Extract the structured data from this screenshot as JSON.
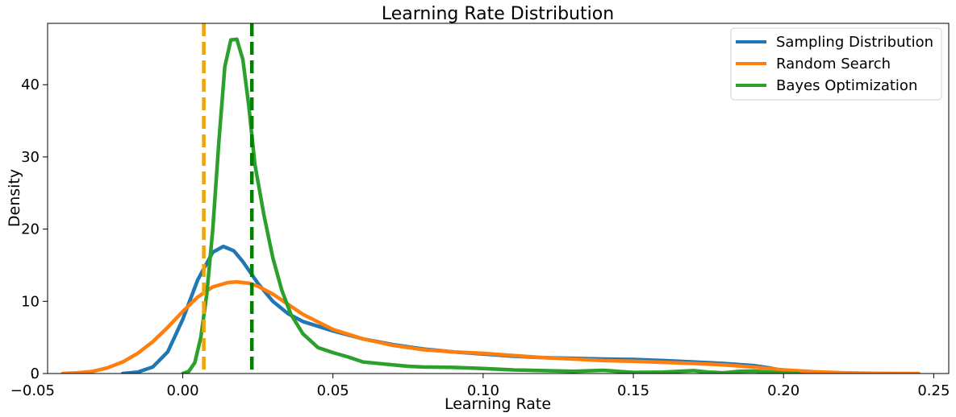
{
  "chart_data": {
    "type": "line",
    "title": "Learning Rate Distribution",
    "xlabel": "Learning Rate",
    "ylabel": "Density",
    "xlim": [
      -0.045,
      0.255
    ],
    "ylim": [
      0,
      48.5
    ],
    "x_ticks": [
      -0.05,
      0.0,
      0.05,
      0.1,
      0.15,
      0.2,
      0.25
    ],
    "x_tick_labels": [
      "−0.05",
      "0.00",
      "0.05",
      "0.10",
      "0.15",
      "0.20",
      "0.25"
    ],
    "y_ticks": [
      0,
      10,
      20,
      30,
      40
    ],
    "y_tick_labels": [
      "0",
      "10",
      "20",
      "30",
      "40"
    ],
    "grid": false,
    "legend_position": "top-right",
    "series": [
      {
        "name": "Sampling Distribution",
        "color": "#1f77b4",
        "points": [
          [
            -0.02,
            0.0
          ],
          [
            -0.015,
            0.2
          ],
          [
            -0.01,
            0.9
          ],
          [
            -0.005,
            3.0
          ],
          [
            0.0,
            7.5
          ],
          [
            0.005,
            13.0
          ],
          [
            0.01,
            16.8
          ],
          [
            0.0135,
            17.6
          ],
          [
            0.017,
            17.0
          ],
          [
            0.02,
            15.5
          ],
          [
            0.025,
            12.5
          ],
          [
            0.03,
            10.0
          ],
          [
            0.035,
            8.3
          ],
          [
            0.04,
            7.2
          ],
          [
            0.05,
            5.9
          ],
          [
            0.06,
            4.8
          ],
          [
            0.07,
            4.0
          ],
          [
            0.08,
            3.4
          ],
          [
            0.09,
            3.0
          ],
          [
            0.1,
            2.7
          ],
          [
            0.11,
            2.4
          ],
          [
            0.12,
            2.2
          ],
          [
            0.13,
            2.1
          ],
          [
            0.14,
            2.0
          ],
          [
            0.15,
            1.95
          ],
          [
            0.16,
            1.8
          ],
          [
            0.17,
            1.6
          ],
          [
            0.18,
            1.4
          ],
          [
            0.19,
            1.1
          ],
          [
            0.195,
            0.8
          ],
          [
            0.2,
            0.4
          ],
          [
            0.205,
            0.15
          ],
          [
            0.21,
            0.0
          ]
        ]
      },
      {
        "name": "Random Search",
        "color": "#ff7f0e",
        "points": [
          [
            -0.04,
            0.0
          ],
          [
            -0.035,
            0.1
          ],
          [
            -0.03,
            0.3
          ],
          [
            -0.025,
            0.8
          ],
          [
            -0.02,
            1.6
          ],
          [
            -0.015,
            2.8
          ],
          [
            -0.01,
            4.4
          ],
          [
            -0.005,
            6.4
          ],
          [
            0.0,
            8.6
          ],
          [
            0.005,
            10.6
          ],
          [
            0.01,
            12.0
          ],
          [
            0.015,
            12.6
          ],
          [
            0.018,
            12.7
          ],
          [
            0.022,
            12.5
          ],
          [
            0.025,
            12.1
          ],
          [
            0.03,
            11.0
          ],
          [
            0.035,
            9.6
          ],
          [
            0.04,
            8.2
          ],
          [
            0.05,
            6.1
          ],
          [
            0.06,
            4.8
          ],
          [
            0.07,
            3.9
          ],
          [
            0.08,
            3.3
          ],
          [
            0.09,
            3.0
          ],
          [
            0.1,
            2.8
          ],
          [
            0.11,
            2.5
          ],
          [
            0.12,
            2.2
          ],
          [
            0.13,
            2.0
          ],
          [
            0.14,
            1.8
          ],
          [
            0.15,
            1.7
          ],
          [
            0.16,
            1.55
          ],
          [
            0.17,
            1.4
          ],
          [
            0.18,
            1.2
          ],
          [
            0.19,
            0.9
          ],
          [
            0.2,
            0.5
          ],
          [
            0.21,
            0.25
          ],
          [
            0.22,
            0.1
          ],
          [
            0.23,
            0.03
          ],
          [
            0.245,
            0.0
          ]
        ]
      },
      {
        "name": "Bayes Optimization",
        "color": "#2ca02c",
        "points": [
          [
            0.0,
            0.0
          ],
          [
            0.002,
            0.3
          ],
          [
            0.004,
            1.5
          ],
          [
            0.006,
            5.0
          ],
          [
            0.008,
            11.0
          ],
          [
            0.01,
            20.0
          ],
          [
            0.012,
            32.0
          ],
          [
            0.014,
            42.5
          ],
          [
            0.016,
            46.2
          ],
          [
            0.018,
            46.3
          ],
          [
            0.02,
            43.5
          ],
          [
            0.022,
            37.0
          ],
          [
            0.024,
            29.0
          ],
          [
            0.027,
            22.0
          ],
          [
            0.03,
            16.0
          ],
          [
            0.033,
            11.5
          ],
          [
            0.036,
            8.2
          ],
          [
            0.04,
            5.5
          ],
          [
            0.045,
            3.6
          ],
          [
            0.05,
            2.9
          ],
          [
            0.055,
            2.3
          ],
          [
            0.06,
            1.6
          ],
          [
            0.065,
            1.4
          ],
          [
            0.07,
            1.2
          ],
          [
            0.075,
            1.0
          ],
          [
            0.08,
            0.9
          ],
          [
            0.09,
            0.85
          ],
          [
            0.1,
            0.7
          ],
          [
            0.11,
            0.5
          ],
          [
            0.12,
            0.4
          ],
          [
            0.13,
            0.3
          ],
          [
            0.14,
            0.45
          ],
          [
            0.145,
            0.3
          ],
          [
            0.15,
            0.15
          ],
          [
            0.16,
            0.2
          ],
          [
            0.17,
            0.4
          ],
          [
            0.175,
            0.2
          ],
          [
            0.18,
            0.1
          ],
          [
            0.185,
            0.3
          ],
          [
            0.19,
            0.35
          ],
          [
            0.195,
            0.2
          ],
          [
            0.2,
            0.05
          ],
          [
            0.205,
            0.0
          ]
        ]
      }
    ],
    "vertical_lines": [
      {
        "x": 0.007,
        "color": "#f0a30a",
        "style": "dashed"
      },
      {
        "x": 0.023,
        "color": "#008000",
        "style": "dashed"
      }
    ]
  }
}
